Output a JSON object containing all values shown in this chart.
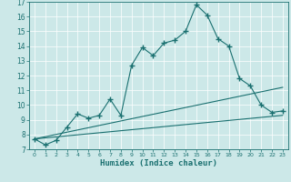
{
  "xlabel": "Humidex (Indice chaleur)",
  "ylabel": "",
  "xlim": [
    -0.5,
    23.5
  ],
  "ylim": [
    7,
    17
  ],
  "xticks": [
    0,
    1,
    2,
    3,
    4,
    5,
    6,
    7,
    8,
    9,
    10,
    11,
    12,
    13,
    14,
    15,
    16,
    17,
    18,
    19,
    20,
    21,
    22,
    23
  ],
  "yticks": [
    7,
    8,
    9,
    10,
    11,
    12,
    13,
    14,
    15,
    16,
    17
  ],
  "bg_color": "#cce8e8",
  "line_color": "#1a7070",
  "line1_x": [
    0,
    1,
    2,
    3,
    4,
    5,
    6,
    7,
    8,
    9,
    10,
    11,
    12,
    13,
    14,
    15,
    16,
    17,
    18,
    19,
    20,
    21,
    22,
    23
  ],
  "line1_y": [
    7.7,
    7.3,
    7.6,
    8.5,
    9.4,
    9.1,
    9.3,
    10.4,
    9.3,
    12.7,
    13.9,
    13.35,
    14.2,
    14.4,
    15.0,
    16.8,
    16.1,
    14.5,
    14.0,
    11.8,
    11.3,
    10.0,
    9.5,
    9.6
  ],
  "line2_x": [
    0,
    23
  ],
  "line2_y": [
    7.7,
    11.2
  ],
  "line3_x": [
    0,
    23
  ],
  "line3_y": [
    7.7,
    9.3
  ]
}
